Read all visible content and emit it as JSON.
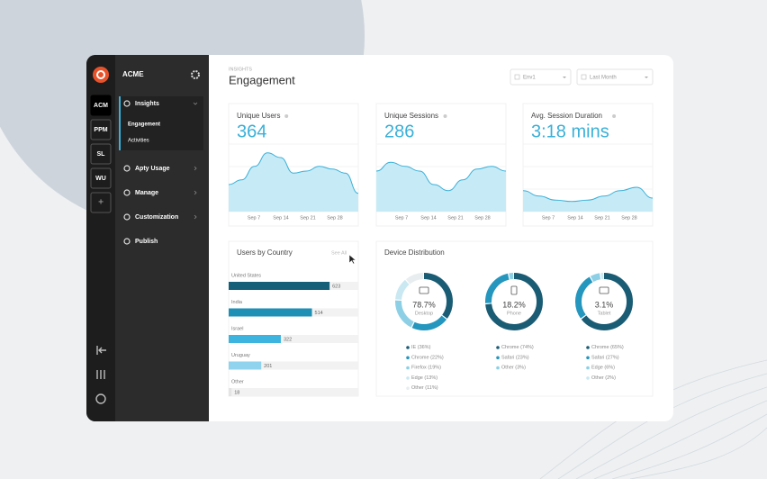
{
  "sidebar": {
    "brand": "ACME",
    "workspaces": [
      "ACM",
      "PPM",
      "SL",
      "WU",
      "+"
    ],
    "nav": [
      {
        "label": "Insights",
        "children": [
          "Engagement",
          "Activities"
        ]
      },
      {
        "label": "Apty Usage"
      },
      {
        "label": "Manage"
      },
      {
        "label": "Customization"
      },
      {
        "label": "Publish"
      }
    ]
  },
  "header": {
    "section": "INSIGHTS",
    "title": "Engagement",
    "filters": [
      "Env1",
      "Last Month"
    ]
  },
  "metrics": [
    {
      "title": "Unique Users",
      "value": "364",
      "dates": [
        "Sep 7",
        "Sep 14",
        "Sep 21",
        "Sep 28"
      ],
      "ylim": [
        0,
        100
      ],
      "trend": [
        40,
        47,
        67,
        87,
        80,
        57,
        60,
        67,
        63,
        57,
        27
      ]
    },
    {
      "title": "Unique Sessions",
      "value": "286",
      "dates": [
        "Sep 7",
        "Sep 14",
        "Sep 21",
        "Sep 28"
      ],
      "ylim": [
        0,
        100
      ],
      "trend": [
        60,
        73,
        67,
        60,
        40,
        31,
        47,
        63,
        67,
        60
      ]
    },
    {
      "title": "Avg. Session Duration",
      "value": "3:18 mins",
      "dates": [
        "Sep 7",
        "Sep 14",
        "Sep 21",
        "Sep 28"
      ],
      "ylim": [
        0,
        100
      ],
      "trend": [
        31,
        23,
        17,
        15,
        17,
        23,
        31,
        36,
        20
      ]
    }
  ],
  "countries": {
    "title": "Users by Country",
    "link": "See All",
    "categories": [
      "United States",
      "India",
      "Israel",
      "Uruguay",
      "Other"
    ],
    "values": [
      623,
      514,
      322,
      201,
      18
    ],
    "xlim": [
      0,
      800
    ],
    "colors": [
      "#155f78",
      "#1e8fb5",
      "#3db3e0",
      "#8fd3ee",
      "#e4e4e4"
    ]
  },
  "devices": {
    "title": "Device Distribution",
    "colors": [
      "#1b5c75",
      "#2596be",
      "#8dd0e6",
      "#c9e8f1",
      "#e8eef0"
    ],
    "items": [
      {
        "name": "Desktop",
        "share": "78.7%",
        "segments": [
          {
            "name": "IE",
            "value": 36,
            "value_label": "(36%)"
          },
          {
            "name": "Chrome",
            "value": 22,
            "value_label": "(22%)"
          },
          {
            "name": "Firefox",
            "value": 19,
            "value_label": "(19%)"
          },
          {
            "name": "Edge",
            "value": 13,
            "value_label": "(13%)"
          },
          {
            "name": "Other",
            "value": 11,
            "value_label": "(11%)"
          }
        ]
      },
      {
        "name": "Phone",
        "share": "18.2%",
        "segments": [
          {
            "name": "Chrome",
            "value": 74,
            "value_label": "(74%)"
          },
          {
            "name": "Safari",
            "value": 23,
            "value_label": "(23%)"
          },
          {
            "name": "Other",
            "value": 3,
            "value_label": "(3%)"
          }
        ]
      },
      {
        "name": "Tablet",
        "share": "3.1%",
        "segments": [
          {
            "name": "Chrome",
            "value": 65,
            "value_label": "(65%)"
          },
          {
            "name": "Safari",
            "value": 27,
            "value_label": "(27%)"
          },
          {
            "name": "Edge",
            "value": 6,
            "value_label": "(6%)"
          },
          {
            "name": "Other",
            "value": 2,
            "value_label": "(2%)"
          }
        ]
      }
    ]
  }
}
